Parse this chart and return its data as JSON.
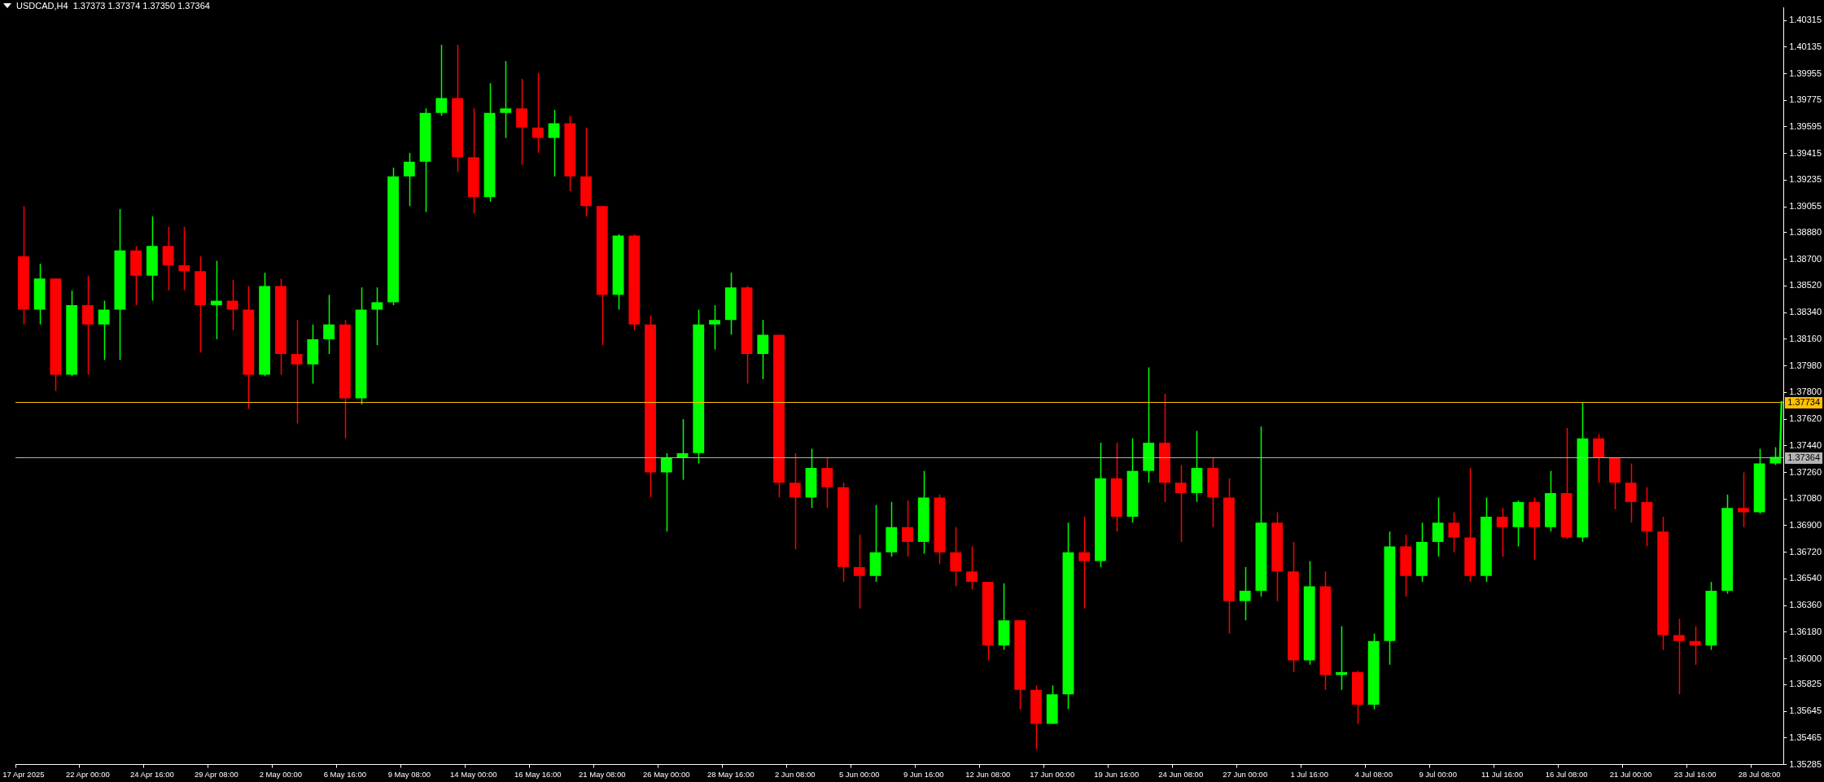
{
  "chart_data": {
    "type": "candlestick",
    "title": "USDCAD,H4  1.37373 1.37374 1.37350 1.37364",
    "categories": [
      "17 Apr 2025",
      null,
      null,
      null,
      "22 Apr 00:00",
      null,
      null,
      null,
      "24 Apr 16:00",
      null,
      null,
      null,
      "29 Apr 08:00",
      null,
      null,
      null,
      "2 May 00:00",
      null,
      null,
      null,
      "6 May 16:00",
      null,
      null,
      null,
      "9 May 08:00",
      null,
      null,
      null,
      "14 May 00:00",
      null,
      null,
      null,
      "16 May 16:00",
      null,
      null,
      null,
      "21 May 08:00",
      null,
      null,
      null,
      "26 May 00:00",
      null,
      null,
      null,
      "28 May 16:00",
      null,
      null,
      null,
      "2 Jun 08:00",
      null,
      null,
      null,
      "5 Jun 00:00",
      null,
      null,
      null,
      "9 Jun 16:00",
      null,
      null,
      null,
      "12 Jun 08:00",
      null,
      null,
      null,
      "17 Jun 00:00",
      null,
      null,
      null,
      "19 Jun 16:00",
      null,
      null,
      null,
      "24 Jun 08:00",
      null,
      null,
      null,
      "27 Jun 00:00",
      null,
      null,
      null,
      "1 Jul 16:00",
      null,
      null,
      null,
      "4 Jul 08:00",
      null,
      null,
      null,
      "9 Jul 00:00",
      null,
      null,
      null,
      "11 Jul 16:00",
      null,
      null,
      null,
      "16 Jul 08:00",
      null,
      null,
      null,
      "21 Jul 00:00",
      null,
      null,
      null,
      "23 Jul 16:00",
      null,
      null,
      null,
      "28 Jul 08:00",
      null
    ],
    "ohlc": [
      [
        1.3872,
        1.3906,
        1.3826,
        1.3836
      ],
      [
        1.3836,
        1.3867,
        1.3826,
        1.3857
      ],
      [
        1.3857,
        1.3857,
        1.3781,
        1.3792
      ],
      [
        1.3792,
        1.3849,
        1.3791,
        1.3839
      ],
      [
        1.3839,
        1.3859,
        1.3792,
        1.3826
      ],
      [
        1.3826,
        1.3842,
        1.3802,
        1.3836
      ],
      [
        1.3836,
        1.3904,
        1.3802,
        1.3876
      ],
      [
        1.3876,
        1.3879,
        1.3839,
        1.3859
      ],
      [
        1.3859,
        1.3899,
        1.3842,
        1.3879
      ],
      [
        1.3879,
        1.3892,
        1.3849,
        1.3866
      ],
      [
        1.3866,
        1.3892,
        1.3849,
        1.3862
      ],
      [
        1.3862,
        1.3872,
        1.3807,
        1.3839
      ],
      [
        1.3839,
        1.3869,
        1.3816,
        1.3842
      ],
      [
        1.3842,
        1.3856,
        1.3822,
        1.3836
      ],
      [
        1.3836,
        1.3852,
        1.3769,
        1.3792
      ],
      [
        1.3792,
        1.3861,
        1.3791,
        1.3852
      ],
      [
        1.3852,
        1.3857,
        1.3792,
        1.3806
      ],
      [
        1.3806,
        1.3829,
        1.3759,
        1.3799
      ],
      [
        1.3799,
        1.3826,
        1.3786,
        1.3816
      ],
      [
        1.3816,
        1.3846,
        1.3806,
        1.3826
      ],
      [
        1.3826,
        1.3829,
        1.3749,
        1.3776
      ],
      [
        1.3776,
        1.3851,
        1.3772,
        1.3836
      ],
      [
        1.3836,
        1.3851,
        1.3812,
        1.3841
      ],
      [
        1.3841,
        1.3932,
        1.3839,
        1.3926
      ],
      [
        1.3926,
        1.3942,
        1.3906,
        1.3936
      ],
      [
        1.3936,
        1.3972,
        1.3902,
        1.3969
      ],
      [
        1.3969,
        1.4015,
        1.3967,
        1.3979
      ],
      [
        1.3979,
        1.4015,
        1.3929,
        1.3939
      ],
      [
        1.3939,
        1.3972,
        1.3901,
        1.3912
      ],
      [
        1.3912,
        1.3989,
        1.3909,
        1.3969
      ],
      [
        1.3969,
        1.4004,
        1.3952,
        1.3972
      ],
      [
        1.3972,
        1.3992,
        1.3934,
        1.3959
      ],
      [
        1.3959,
        1.3996,
        1.3942,
        1.3952
      ],
      [
        1.3952,
        1.3971,
        1.3926,
        1.3962
      ],
      [
        1.3962,
        1.3967,
        1.3916,
        1.3926
      ],
      [
        1.3926,
        1.3959,
        1.3899,
        1.3906
      ],
      [
        1.3906,
        1.3906,
        1.3812,
        1.3846
      ],
      [
        1.3846,
        1.3887,
        1.3836,
        1.3886
      ],
      [
        1.3886,
        1.3887,
        1.3822,
        1.3826
      ],
      [
        1.3826,
        1.3832,
        1.3709,
        1.3726
      ],
      [
        1.3726,
        1.3739,
        1.3686,
        1.3736
      ],
      [
        1.3736,
        1.3762,
        1.3721,
        1.3739
      ],
      [
        1.3739,
        1.3836,
        1.3732,
        1.3826
      ],
      [
        1.3826,
        1.3839,
        1.3809,
        1.3829
      ],
      [
        1.3829,
        1.3861,
        1.3819,
        1.3851
      ],
      [
        1.3851,
        1.3852,
        1.3786,
        1.3806
      ],
      [
        1.3806,
        1.3829,
        1.3789,
        1.3819
      ],
      [
        1.3819,
        1.3819,
        1.3709,
        1.3719
      ],
      [
        1.3719,
        1.3739,
        1.3674,
        1.3709
      ],
      [
        1.3709,
        1.3742,
        1.3702,
        1.3729
      ],
      [
        1.3729,
        1.3736,
        1.3702,
        1.3716
      ],
      [
        1.3716,
        1.3719,
        1.3652,
        1.3662
      ],
      [
        1.3662,
        1.3684,
        1.3634,
        1.3656
      ],
      [
        1.3656,
        1.3704,
        1.3652,
        1.3672
      ],
      [
        1.3672,
        1.3706,
        1.3669,
        1.3689
      ],
      [
        1.3689,
        1.3707,
        1.3669,
        1.3679
      ],
      [
        1.3679,
        1.3727,
        1.3671,
        1.3709
      ],
      [
        1.3709,
        1.3711,
        1.3664,
        1.3672
      ],
      [
        1.3672,
        1.3689,
        1.3649,
        1.3659
      ],
      [
        1.3659,
        1.3676,
        1.3647,
        1.3652
      ],
      [
        1.3652,
        1.3652,
        1.3599,
        1.3609
      ],
      [
        1.3609,
        1.3651,
        1.3606,
        1.3626
      ],
      [
        1.3626,
        1.3626,
        1.3566,
        1.3579
      ],
      [
        1.3579,
        1.3582,
        1.3539,
        1.3556
      ],
      [
        1.3556,
        1.3582,
        1.3556,
        1.3576
      ],
      [
        1.3576,
        1.3692,
        1.3566,
        1.3672
      ],
      [
        1.3672,
        1.3696,
        1.3634,
        1.3666
      ],
      [
        1.3666,
        1.3746,
        1.3662,
        1.3722
      ],
      [
        1.3722,
        1.3746,
        1.3686,
        1.3696
      ],
      [
        1.3696,
        1.3749,
        1.3692,
        1.3727
      ],
      [
        1.3727,
        1.3797,
        1.3719,
        1.3746
      ],
      [
        1.3746,
        1.3779,
        1.3706,
        1.3719
      ],
      [
        1.3719,
        1.3731,
        1.3679,
        1.3712
      ],
      [
        1.3712,
        1.3754,
        1.3706,
        1.3729
      ],
      [
        1.3729,
        1.3736,
        1.3689,
        1.3709
      ],
      [
        1.3709,
        1.3722,
        1.3617,
        1.3639
      ],
      [
        1.3639,
        1.3662,
        1.3626,
        1.3646
      ],
      [
        1.3646,
        1.3757,
        1.3642,
        1.3692
      ],
      [
        1.3692,
        1.3699,
        1.3639,
        1.3659
      ],
      [
        1.3659,
        1.3679,
        1.3591,
        1.3599
      ],
      [
        1.3599,
        1.3666,
        1.3596,
        1.3649
      ],
      [
        1.3649,
        1.3659,
        1.3579,
        1.3589
      ],
      [
        1.3589,
        1.3622,
        1.3579,
        1.3591
      ],
      [
        1.3591,
        1.3592,
        1.3556,
        1.3569
      ],
      [
        1.3569,
        1.3617,
        1.3566,
        1.3612
      ],
      [
        1.3612,
        1.3686,
        1.3596,
        1.3676
      ],
      [
        1.3676,
        1.3684,
        1.3642,
        1.3656
      ],
      [
        1.3656,
        1.3692,
        1.3652,
        1.3679
      ],
      [
        1.3679,
        1.3709,
        1.3669,
        1.3692
      ],
      [
        1.3692,
        1.3699,
        1.3672,
        1.3682
      ],
      [
        1.3682,
        1.3729,
        1.3652,
        1.3656
      ],
      [
        1.3656,
        1.3709,
        1.3652,
        1.3696
      ],
      [
        1.3696,
        1.3702,
        1.3669,
        1.3689
      ],
      [
        1.3689,
        1.3707,
        1.3676,
        1.3706
      ],
      [
        1.3706,
        1.3709,
        1.3667,
        1.3689
      ],
      [
        1.3689,
        1.3727,
        1.3686,
        1.3712
      ],
      [
        1.3712,
        1.3756,
        1.3681,
        1.3682
      ],
      [
        1.3682,
        1.3773,
        1.3679,
        1.3749
      ],
      [
        1.3749,
        1.3752,
        1.3719,
        1.3736
      ],
      [
        1.3736,
        1.3736,
        1.3701,
        1.3719
      ],
      [
        1.3719,
        1.3732,
        1.3692,
        1.3706
      ],
      [
        1.3706,
        1.3716,
        1.3676,
        1.3686
      ],
      [
        1.3686,
        1.3696,
        1.3606,
        1.3616
      ],
      [
        1.3616,
        1.3627,
        1.3576,
        1.3612
      ],
      [
        1.3612,
        1.3622,
        1.3596,
        1.3609
      ],
      [
        1.3609,
        1.3652,
        1.3606,
        1.3646
      ],
      [
        1.3646,
        1.3711,
        1.3644,
        1.3702
      ],
      [
        1.3702,
        1.3726,
        1.3689,
        1.3699
      ],
      [
        1.3699,
        1.3742,
        1.3698,
        1.3732
      ],
      [
        1.3732,
        1.3743,
        1.3731,
        1.37364
      ]
    ],
    "colors": [
      "#ff0000",
      "#00ff00",
      "#ff0000",
      "#00ff00",
      "#ff0000",
      "#00ff00",
      "#00ff00",
      "#ff0000",
      "#00ff00",
      "#ff0000",
      "#ff0000",
      "#ff0000",
      "#00ff00",
      "#ff0000",
      "#ff0000",
      "#00ff00",
      "#ff0000",
      "#ff0000",
      "#00ff00",
      "#00ff00",
      "#ff0000",
      "#00ff00",
      "#00ff00",
      "#00ff00",
      "#00ff00",
      "#00ff00",
      "#00ff00",
      "#ff0000",
      "#ff0000",
      "#00ff00",
      "#00ff00",
      "#ff0000",
      "#ff0000",
      "#00ff00",
      "#ff0000",
      "#ff0000",
      "#ff0000",
      "#00ff00",
      "#ff0000",
      "#ff0000",
      "#00ff00",
      "#00ff00",
      "#00ff00",
      "#00ff00",
      "#00ff00",
      "#ff0000",
      "#00ff00",
      "#ff0000",
      "#ff0000",
      "#00ff00",
      "#ff0000",
      "#ff0000",
      "#ff0000",
      "#00ff00",
      "#00ff00",
      "#ff0000",
      "#00ff00",
      "#ff0000",
      "#ff0000",
      "#ff0000",
      "#ff0000",
      "#00ff00",
      "#ff0000",
      "#ff0000",
      "#00ff00",
      "#00ff00",
      "#ff0000",
      "#00ff00",
      "#ff0000",
      "#00ff00",
      "#00ff00",
      "#ff0000",
      "#ff0000",
      "#00ff00",
      "#ff0000",
      "#ff0000",
      "#00ff00",
      "#00ff00",
      "#ff0000",
      "#ff0000",
      "#00ff00",
      "#ff0000",
      "#00ff00",
      "#ff0000",
      "#00ff00",
      "#00ff00",
      "#ff0000",
      "#00ff00",
      "#00ff00",
      "#ff0000",
      "#ff0000",
      "#00ff00",
      "#ff0000",
      "#00ff00",
      "#ff0000",
      "#00ff00",
      "#ff0000",
      "#00ff00",
      "#ff0000",
      "#ff0000",
      "#ff0000",
      "#ff0000",
      "#ff0000",
      "#ff0000",
      "#ff0000",
      "#00ff00",
      "#00ff00",
      "#ff0000",
      "#00ff00",
      "#00ff00"
    ],
    "ylim": [
      1.35285,
      1.404
    ],
    "yticks": [
      {
        "value": 1.35285,
        "label": "1.35285"
      },
      {
        "value": 1.35465,
        "label": "1.35465"
      },
      {
        "value": 1.35645,
        "label": "1.35645"
      },
      {
        "value": 1.35825,
        "label": "1.35825"
      },
      {
        "value": 1.36,
        "label": "1.36000"
      },
      {
        "value": 1.3618,
        "label": "1.36180"
      },
      {
        "value": 1.3636,
        "label": "1.36360"
      },
      {
        "value": 1.3654,
        "label": "1.36540"
      },
      {
        "value": 1.3672,
        "label": "1.36720"
      },
      {
        "value": 1.369,
        "label": "1.36900"
      },
      {
        "value": 1.3708,
        "label": "1.37080"
      },
      {
        "value": 1.3726,
        "label": "1.37260"
      },
      {
        "value": 1.3744,
        "label": "1.37440"
      },
      {
        "value": 1.3762,
        "label": "1.37620"
      },
      {
        "value": 1.378,
        "label": "1.37800"
      },
      {
        "value": 1.3798,
        "label": "1.37980"
      },
      {
        "value": 1.3816,
        "label": "1.38160"
      },
      {
        "value": 1.3834,
        "label": "1.38340"
      },
      {
        "value": 1.3852,
        "label": "1.38520"
      },
      {
        "value": 1.387,
        "label": "1.38700"
      },
      {
        "value": 1.3888,
        "label": "1.38880"
      },
      {
        "value": 1.39055,
        "label": "1.39055"
      },
      {
        "value": 1.39235,
        "label": "1.39235"
      },
      {
        "value": 1.39415,
        "label": "1.39415"
      },
      {
        "value": 1.39595,
        "label": "1.39595"
      },
      {
        "value": 1.39775,
        "label": "1.39775"
      },
      {
        "value": 1.39955,
        "label": "1.39955"
      },
      {
        "value": 1.40135,
        "label": "1.40135"
      },
      {
        "value": 1.40315,
        "label": "1.40315"
      }
    ],
    "ref_lines": [
      {
        "axis": "y",
        "value": 1.37734,
        "label": "1.37734",
        "color": "#ffc000"
      },
      {
        "axis": "y",
        "value": 1.37364,
        "label": "1.37364",
        "color": "#b4b4b4"
      }
    ],
    "grid": false,
    "legend": false
  }
}
